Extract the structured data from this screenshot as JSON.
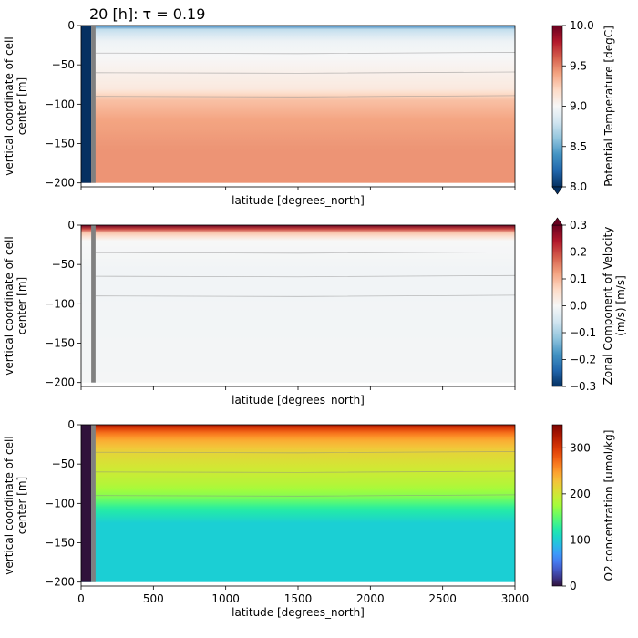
{
  "figure_title": "20 [h]: τ = 0.19",
  "chart_data": [
    {
      "type": "heatmap",
      "panel": "temperature",
      "ylabel": [
        "vertical coordinate of cell",
        "center [m]"
      ],
      "xlabel": "latitude [degrees_north]",
      "xlim": [
        0,
        3000
      ],
      "ylim": [
        -205,
        0
      ],
      "y_ticks": [
        0,
        -50,
        -100,
        -150,
        -200
      ],
      "y_tick_labels": [
        "0",
        "−50",
        "−100",
        "−150",
        "−200"
      ],
      "x_ticks": [
        0,
        500,
        1000,
        1500,
        2000,
        2500,
        3000
      ],
      "show_x_tick_labels": false,
      "colormap": "RdBu_r",
      "colorbar": {
        "label": "Potential Temperature [degC]",
        "min": 8.0,
        "max": 10.0,
        "extend": "min",
        "ticks": [
          8.0,
          8.5,
          9.0,
          9.5,
          10.0
        ],
        "tick_labels": [
          "8.0",
          "8.5",
          "9.0",
          "9.5",
          "10.0"
        ]
      },
      "field_profile_depth": [
        0,
        -5,
        -20,
        -40,
        -60,
        -80,
        -95,
        -120,
        -160,
        -200
      ],
      "field_profile_value": [
        8.3,
        8.75,
        8.95,
        9.0,
        9.05,
        9.1,
        9.3,
        9.4,
        9.45,
        9.45
      ],
      "coastal_band_x": [
        0,
        70
      ],
      "coastal_band_value": 7.8,
      "mask_bar_x": [
        70,
        100
      ],
      "contour_depths": [
        -35,
        -60,
        -90
      ]
    },
    {
      "type": "heatmap",
      "panel": "zonal_velocity",
      "ylabel": [
        "vertical coordinate of cell",
        "center [m]"
      ],
      "xlabel": "latitude [degrees_north]",
      "xlim": [
        0,
        3000
      ],
      "ylim": [
        -205,
        0
      ],
      "y_ticks": [
        0,
        -50,
        -100,
        -150,
        -200
      ],
      "y_tick_labels": [
        "0",
        "−50",
        "−100",
        "−150",
        "−200"
      ],
      "x_ticks": [
        0,
        500,
        1000,
        1500,
        2000,
        2500,
        3000
      ],
      "show_x_tick_labels": false,
      "colormap": "RdBu_r",
      "colorbar": {
        "label": [
          "Zonal Component of Velocity",
          "(m/s) [m/s]"
        ],
        "min": -0.3,
        "max": 0.3,
        "extend": "max",
        "ticks": [
          -0.3,
          -0.2,
          -0.1,
          0.0,
          0.1,
          0.2,
          0.3
        ],
        "tick_labels": [
          "−0.3",
          "−0.2",
          "−0.1",
          "0.0",
          "0.1",
          "0.2",
          "0.3"
        ]
      },
      "field_profile_depth": [
        0,
        -5,
        -10,
        -20,
        -60,
        -200
      ],
      "field_profile_value": [
        0.3,
        0.2,
        0.08,
        0.0,
        -0.01,
        -0.005
      ],
      "mask_bar_x": [
        70,
        100
      ],
      "contour_depths": [
        -35,
        -65,
        -90
      ]
    },
    {
      "type": "heatmap",
      "panel": "oxygen",
      "ylabel": [
        "vertical coordinate of cell",
        "center [m]"
      ],
      "xlabel": "latitude [degrees_north]",
      "xlim": [
        0,
        3000
      ],
      "ylim": [
        -205,
        0
      ],
      "y_ticks": [
        0,
        -50,
        -100,
        -150,
        -200
      ],
      "y_tick_labels": [
        "0",
        "−50",
        "−100",
        "−150",
        "−200"
      ],
      "x_ticks": [
        0,
        500,
        1000,
        1500,
        2000,
        2500,
        3000
      ],
      "x_tick_labels": [
        "0",
        "500",
        "1000",
        "1500",
        "2000",
        "2500",
        "3000"
      ],
      "show_x_tick_labels": true,
      "colormap": "turbo",
      "colorbar": {
        "label": "O2 concentration [umol/kg]",
        "min": 0,
        "max": 350,
        "ticks": [
          0,
          100,
          200,
          300
        ],
        "tick_labels": [
          "0",
          "100",
          "200",
          "300"
        ]
      },
      "field_profile_depth": [
        0,
        -3,
        -10,
        -20,
        -35,
        -55,
        -75,
        -90,
        -105,
        -125,
        -200
      ],
      "field_profile_value": [
        330,
        305,
        270,
        240,
        215,
        200,
        185,
        165,
        130,
        100,
        100
      ],
      "coastal_band_x": [
        0,
        70
      ],
      "coastal_band_value": 0,
      "mask_bar_x": [
        70,
        100
      ],
      "contour_depths": [
        -35,
        -60,
        -90
      ]
    }
  ]
}
